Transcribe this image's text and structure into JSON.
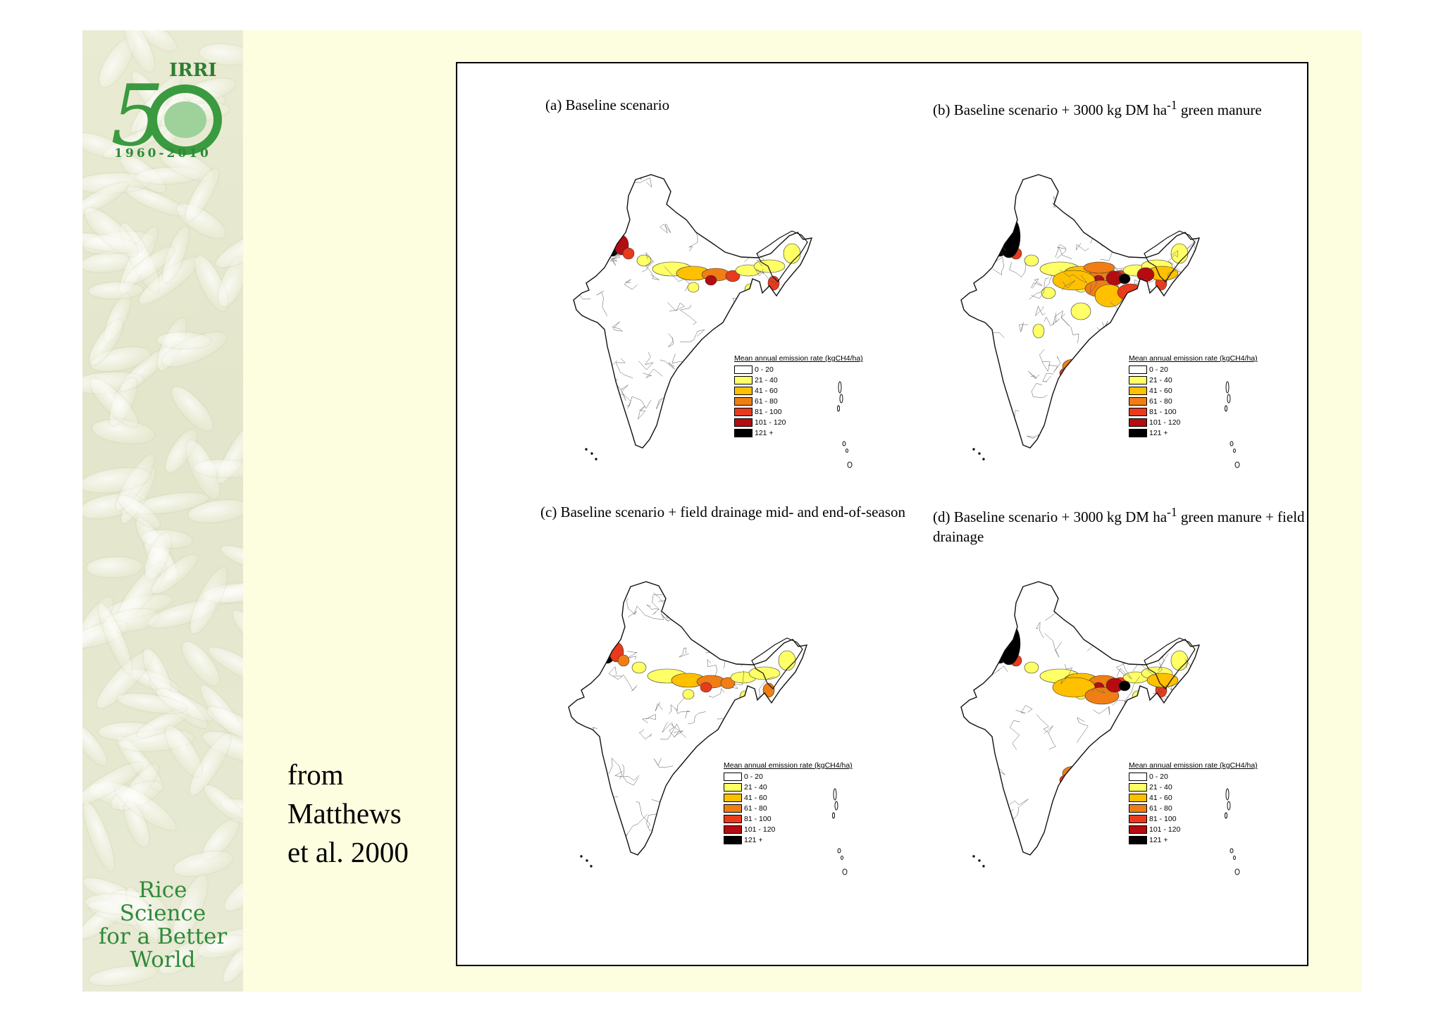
{
  "branding": {
    "logo_years": "1960-2010",
    "logo_org": "IRRI",
    "tagline": [
      "Rice",
      "Science",
      "for a Better",
      "World"
    ]
  },
  "citation": [
    "from",
    "Matthews",
    "et al. 2000"
  ],
  "legend": {
    "title": "Mean annual emission rate (kgCH4/ha)",
    "classes": [
      {
        "label": "0 - 20",
        "color": "#ffffff"
      },
      {
        "label": "21 - 40",
        "color": "#ffff66"
      },
      {
        "label": "41 - 60",
        "color": "#ffc000"
      },
      {
        "label": "61 - 80",
        "color": "#f07e14"
      },
      {
        "label": "81 - 100",
        "color": "#e83a1c"
      },
      {
        "label": "101 - 120",
        "color": "#b40c10"
      },
      {
        "label": "121 +",
        "color": "#000000"
      }
    ]
  },
  "panels": [
    {
      "id": "a",
      "title_html": "(a) Baseline scenario",
      "intensity": 1
    },
    {
      "id": "b",
      "title_html": "(b) Baseline scenario + 3000 kg DM ha<sup>-1</sup> green manure",
      "intensity": 3
    },
    {
      "id": "c",
      "title_html": "(c) Baseline scenario + field drainage mid- and end-of-season",
      "intensity": 1
    },
    {
      "id": "d",
      "title_html": "(d) Baseline scenario + 3000 kg DM ha<sup>-1</sup> green manure + field drainage",
      "intensity": 2
    }
  ]
}
